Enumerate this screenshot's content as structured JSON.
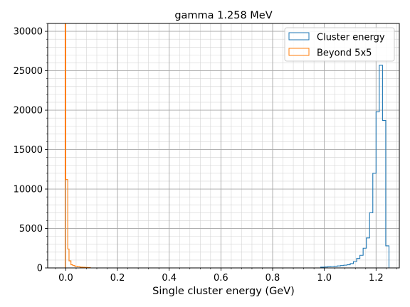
{
  "chart_data": {
    "type": "histogram-step",
    "title": "gamma 1.258 MeV",
    "xlabel": "Single cluster energy (GeV)",
    "ylabel": "",
    "xlim": [
      -0.07,
      1.29
    ],
    "ylim": [
      0,
      31000
    ],
    "x_ticks": [
      0.0,
      0.2,
      0.4,
      0.6,
      0.8,
      1.0,
      1.2
    ],
    "x_tick_labels": [
      "0.0",
      "0.2",
      "0.4",
      "0.6",
      "0.8",
      "1.0",
      "1.2"
    ],
    "y_ticks": [
      0,
      5000,
      10000,
      15000,
      20000,
      25000,
      30000
    ],
    "y_tick_labels": [
      "0",
      "5000",
      "10000",
      "15000",
      "20000",
      "25000",
      "30000"
    ],
    "grid": true,
    "minor_grid": true,
    "legend_position": "top-right",
    "series": [
      {
        "name": "Cluster energy",
        "color": "#1f77b4",
        "edges": [
          0.986,
          1.0,
          1.0125,
          1.025,
          1.0375,
          1.05,
          1.0625,
          1.075,
          1.0875,
          1.1,
          1.1125,
          1.125,
          1.1375,
          1.15,
          1.1625,
          1.175,
          1.1875,
          1.2,
          1.2125,
          1.225,
          1.2375,
          1.25
        ],
        "counts": [
          100,
          120,
          150,
          170,
          200,
          250,
          300,
          350,
          400,
          550,
          800,
          1200,
          1600,
          2500,
          3800,
          7000,
          12000,
          19800,
          25700,
          18700,
          2800
        ]
      },
      {
        "name": "Beyond 5x5",
        "color": "#ff7f0e",
        "edges": [
          -0.0025,
          0.0,
          0.0075,
          0.0125,
          0.02,
          0.027,
          0.035,
          0.045,
          0.055,
          0.065,
          0.075,
          0.085,
          0.095
        ],
        "counts": [
          31000,
          11200,
          2400,
          900,
          400,
          300,
          200,
          150,
          100,
          80,
          60,
          40
        ]
      }
    ]
  }
}
